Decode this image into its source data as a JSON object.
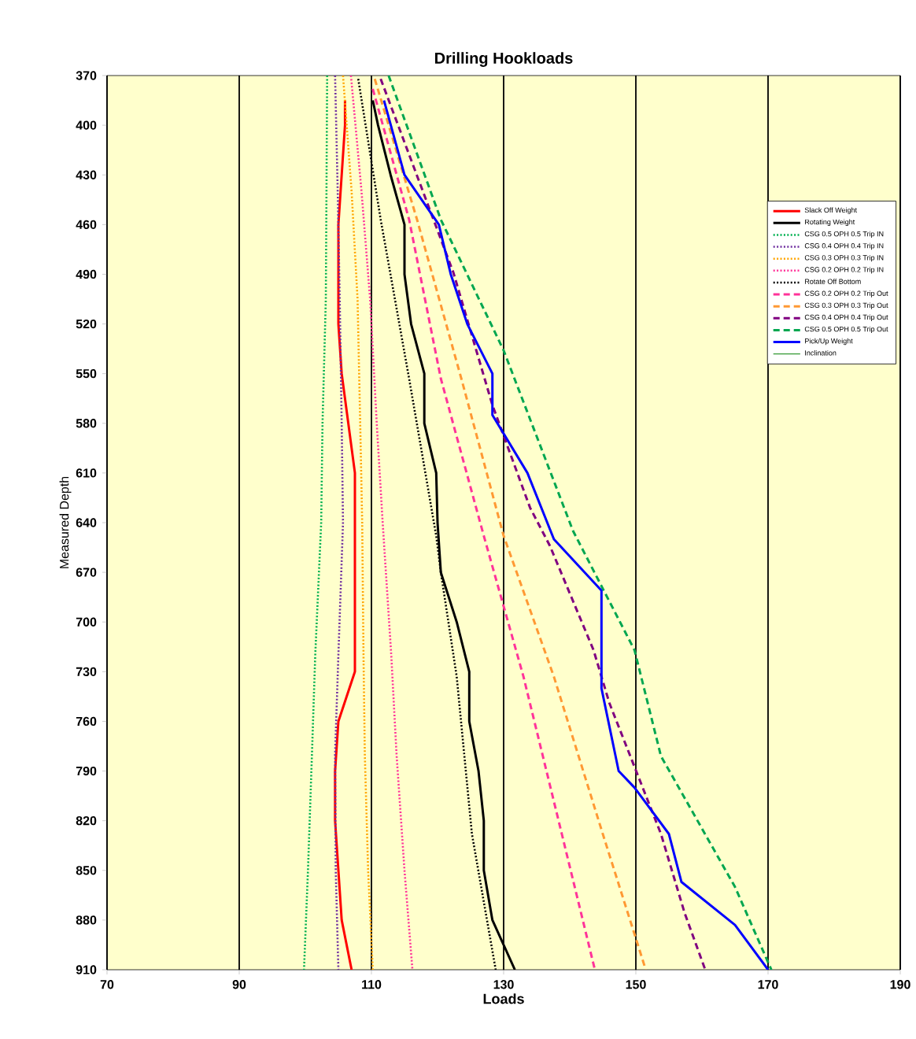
{
  "chart_data": {
    "type": "line",
    "title": "Drilling Hookloads",
    "xlabel": "Loads",
    "ylabel": "Measured Depth",
    "xlim": [
      70,
      190
    ],
    "xticks": [
      70,
      90,
      110,
      130,
      150,
      170,
      190
    ],
    "ylim": [
      910,
      370
    ],
    "yticks": [
      370,
      400,
      430,
      460,
      490,
      520,
      550,
      580,
      610,
      640,
      670,
      700,
      730,
      760,
      790,
      820,
      850,
      880,
      910
    ],
    "grid": "x",
    "legend": "top right",
    "marker": "none",
    "series": [
      {
        "name": "Slack Off Weight",
        "color": "#ff0000",
        "line_style": "solid",
        "x": [
          106,
          106,
          105.5,
          105,
          105,
          105,
          105.5,
          106.5,
          107.5,
          107.5,
          107.5,
          107.5,
          107.5,
          105,
          104.5,
          104.5,
          105,
          105.5,
          107
        ],
        "values": [
          385,
          400,
          430,
          460,
          490,
          520,
          550,
          580,
          610,
          640,
          670,
          700,
          730,
          760,
          790,
          820,
          850,
          880,
          910
        ]
      },
      {
        "name": "Rotating Weight",
        "color": "#000000",
        "line_style": "solid",
        "x": [
          110.2,
          111,
          112.9,
          115,
          115,
          116,
          118,
          118,
          119.8,
          120,
          120.5,
          122.9,
          124.8,
          124.8,
          126.2,
          127,
          127,
          128.3,
          131.7
        ],
        "values": [
          385,
          400,
          430,
          460,
          490,
          520,
          550,
          580,
          610,
          640,
          670,
          700,
          730,
          760,
          790,
          820,
          850,
          880,
          910
        ]
      },
      {
        "name": "CSG 0.5 OPH 0.5 Trip IN",
        "color": "#00b050",
        "line_style": "dotted",
        "x": [
          103.3,
          103.2,
          103.1,
          102.6,
          102.4,
          101.5,
          101,
          100.4,
          99.8
        ],
        "values": [
          370,
          440,
          505,
          580,
          640,
          720,
          780,
          850,
          910
        ]
      },
      {
        "name": "CSG 0.4 OPH 0.4 Trip IN",
        "color": "#7030a0",
        "line_style": "dotted",
        "x": [
          104.5,
          104.9,
          105.2,
          105.5,
          105.7,
          105,
          104.5,
          104.6,
          105
        ],
        "values": [
          370,
          440,
          505,
          580,
          640,
          720,
          780,
          850,
          910
        ]
      },
      {
        "name": "CSG 0.3 OPH 0.3 Trip IN",
        "color": "#ffa500",
        "line_style": "dotted",
        "x": [
          105.7,
          107,
          107.9,
          108.3,
          108.6,
          108.8,
          109,
          109.5,
          110.2
        ],
        "values": [
          370,
          440,
          505,
          580,
          640,
          720,
          780,
          850,
          910
        ]
      },
      {
        "name": "CSG 0.2 OPH 0.2 Trip IN",
        "color": "#ff3399",
        "line_style": "dotted",
        "x": [
          106.9,
          108.5,
          109.8,
          110.8,
          111.7,
          113,
          113.8,
          115,
          116.2
        ],
        "values": [
          370,
          440,
          505,
          580,
          640,
          720,
          780,
          850,
          910
        ]
      },
      {
        "name": "Rotate Off Bottom",
        "color": "#000000",
        "line_style": "dotted",
        "x": [
          108,
          111.4,
          115.7,
          119.8,
          120.5,
          122.9,
          125.2,
          128.8
        ],
        "values": [
          372,
          457,
          553,
          648,
          670,
          733,
          828,
          910
        ]
      },
      {
        "name": "CSG 0.2 OPH 0.2 Trip Out",
        "color": "#ff3399",
        "line_style": "dashed",
        "x": [
          110.2,
          115.7,
          120.5,
          127,
          133,
          138.8,
          143.8
        ],
        "values": [
          378,
          457,
          553,
          648,
          733,
          828,
          910
        ]
      },
      {
        "name": "CSG 0.3 OPH 0.3 Trip Out",
        "color": "#ff9933",
        "line_style": "dashed",
        "x": [
          110.5,
          116.9,
          123.6,
          130,
          137.6,
          145,
          151.5
        ],
        "values": [
          372,
          457,
          553,
          648,
          733,
          828,
          910
        ]
      },
      {
        "name": "CSG 0.4 OPH 0.4 Trip Out",
        "color": "#800080",
        "line_style": "dashed",
        "x": [
          111.4,
          122.4,
          128.3,
          134,
          137,
          143.6,
          146,
          153.8,
          157.4,
          160.5
        ],
        "values": [
          372,
          489,
          569,
          631,
          654,
          717,
          749,
          828,
          876,
          910
        ]
      },
      {
        "name": "CSG 0.5 OPH 0.5 Trip Out",
        "color": "#00a650",
        "line_style": "dashed",
        "x": [
          112.6,
          120.5,
          130,
          140.5,
          149.8,
          153.8,
          165,
          170.5
        ],
        "values": [
          370,
          457,
          536,
          645,
          717,
          781,
          860,
          910
        ]
      },
      {
        "name": "Pick/Up Weight",
        "color": "#0000ff",
        "line_style": "solid",
        "x": [
          111.9,
          115,
          120.2,
          122,
          124.5,
          128.3,
          128.3,
          133.6,
          137.6,
          144.8,
          144.8,
          147.4,
          149.8,
          155,
          156.9,
          165,
          170
        ],
        "values": [
          385,
          430,
          460,
          490,
          520,
          550,
          575,
          610,
          650,
          681,
          740,
          790,
          800,
          828,
          857,
          883,
          910
        ]
      },
      {
        "name": "Inclination",
        "color": "#339933",
        "line_style": "solid"
      }
    ]
  }
}
